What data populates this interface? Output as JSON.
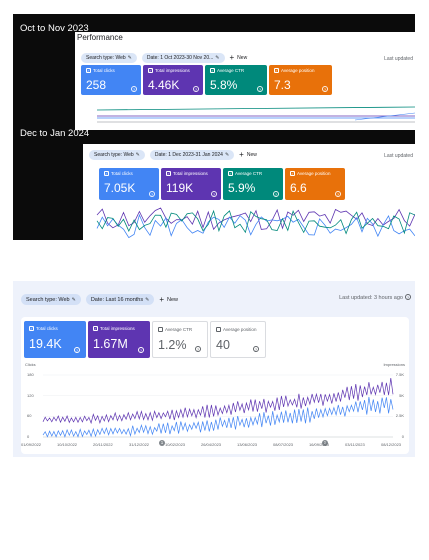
{
  "top": {
    "oct_nov": {
      "period_label": "Oct to Nov 2023",
      "title": "Performance",
      "search_type": "Search type: Web",
      "date": "Date: 1 Oct 2023-30 Nov 20...",
      "new_label": "New",
      "last_updated": "Last updated",
      "cards": [
        {
          "label": "Total clicks",
          "value": "258",
          "color": "#4285f4"
        },
        {
          "label": "Total impressions",
          "value": "4.46K",
          "color": "#5e35b1"
        },
        {
          "label": "Average CTR",
          "value": "5.8%",
          "color": "#00897b"
        },
        {
          "label": "Average position",
          "value": "7.3",
          "color": "#e8710a"
        }
      ]
    },
    "dec_jan": {
      "period_label": "Dec to Jan 2024",
      "search_type": "Search type: Web",
      "date": "Date: 1 Dec 2023-31 Jan 2024",
      "new_label": "New",
      "last_updated": "Last updated",
      "cards": [
        {
          "label": "Total clicks",
          "value": "7.05K",
          "color": "#4285f4"
        },
        {
          "label": "Total impressions",
          "value": "119K",
          "color": "#5e35b1"
        },
        {
          "label": "Average CTR",
          "value": "5.9%",
          "color": "#00897b"
        },
        {
          "label": "Average position",
          "value": "6.6",
          "color": "#e8710a"
        }
      ]
    }
  },
  "bottom": {
    "search_type": "Search type: Web",
    "date": "Date: Last 16 months",
    "new_label": "New",
    "last_updated": "Last updated: 3 hours ago",
    "cards": [
      {
        "label": "Total clicks",
        "value": "19.4K",
        "selected": true,
        "color": "#4285f4"
      },
      {
        "label": "Total impressions",
        "value": "1.67M",
        "selected": true,
        "color": "#5e35b1"
      },
      {
        "label": "Average CTR",
        "value": "1.2%",
        "selected": false
      },
      {
        "label": "Average position",
        "value": "40",
        "selected": false
      }
    ],
    "annotation_markers": [
      "1",
      "1"
    ]
  },
  "chart_data": {
    "type": "line",
    "left_axis_title": "Clicks",
    "right_axis_title": "Impressions",
    "left_ticks": [
      "180",
      "120",
      "60",
      "0"
    ],
    "right_ticks": [
      "7.5K",
      "5K",
      "2.5K",
      "0"
    ],
    "x_labels": [
      "01/09/2022",
      "10/10/2022",
      "20/11/2022",
      "31/12/2022",
      "10/02/2023",
      "26/04/2023",
      "13/06/2023",
      "08/07/2023",
      "16/09/2023",
      "03/11/2023",
      "08/12/2023"
    ],
    "ylim_clicks": [
      0,
      180
    ],
    "ylim_impressions": [
      0,
      7500
    ],
    "series": [
      {
        "name": "Total clicks",
        "color": "#4285f4"
      },
      {
        "name": "Total impressions",
        "color": "#5e35b1"
      }
    ]
  }
}
